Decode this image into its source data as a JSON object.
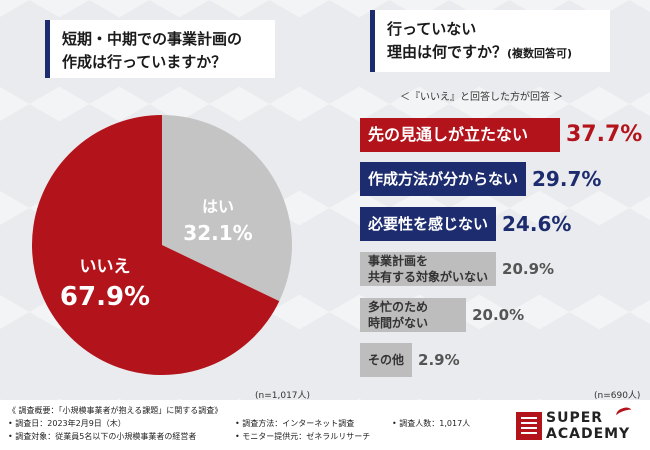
{
  "left_question": {
    "line1": "短期・中期での事業計画の",
    "line2": "作成は行っていますか？"
  },
  "right_question": {
    "line1": "行っていない",
    "line2": "理由は何ですか？",
    "line2_small": "(複数回答可)"
  },
  "sub_label": "＜『いいえ』と回答した方が回答 ＞",
  "n_left": "(n=1,017人)",
  "n_right": "(n=690人)",
  "colors": {
    "no": "#b3131b",
    "yes": "#c4c4c4",
    "navy": "#1c2c6e",
    "gray_bar": "#bdbdbd",
    "header_bar": "#1c2c6e"
  },
  "chart_data": [
    {
      "type": "pie",
      "title": "短期・中期での事業計画の作成は行っていますか？",
      "slices": [
        {
          "label": "いいえ",
          "value": 67.9,
          "display": "67.9%",
          "color": "#b3131b"
        },
        {
          "label": "はい",
          "value": 32.1,
          "display": "32.1%",
          "color": "#c4c4c4"
        }
      ]
    },
    {
      "type": "bar",
      "orientation": "horizontal",
      "title": "行っていない理由は何ですか？(複数回答可)",
      "categories": [
        "先の見通しが立たない",
        "作成方法が分からない",
        "必要性を感じない",
        "事業計画を|共有する対象がいない",
        "多忙のため|時間がない",
        "その他"
      ],
      "values": [
        37.7,
        29.7,
        24.6,
        20.9,
        20.0,
        2.9
      ],
      "display": [
        "37.7%",
        "29.7%",
        "24.6%",
        "20.9%",
        "20.0%",
        "2.9%"
      ],
      "styles": [
        "red",
        "navy",
        "navy",
        "gray",
        "gray",
        "gray"
      ]
    }
  ],
  "footer": {
    "overview": "《 調査概要：「小規模事業者が抱える課題」に関する調査》",
    "date": "• 調査日：2023年2月9日（木）",
    "method": "• 調査方法：インターネット調査",
    "count": "• 調査人数：1,017人",
    "target": "• 調査対象：従業員5名以下の小規模事業者の経営者",
    "provider": "• モニター提供元：ゼネラルリサーチ"
  },
  "logo": {
    "line1": "SUPER",
    "line2": "ACADEMY"
  }
}
